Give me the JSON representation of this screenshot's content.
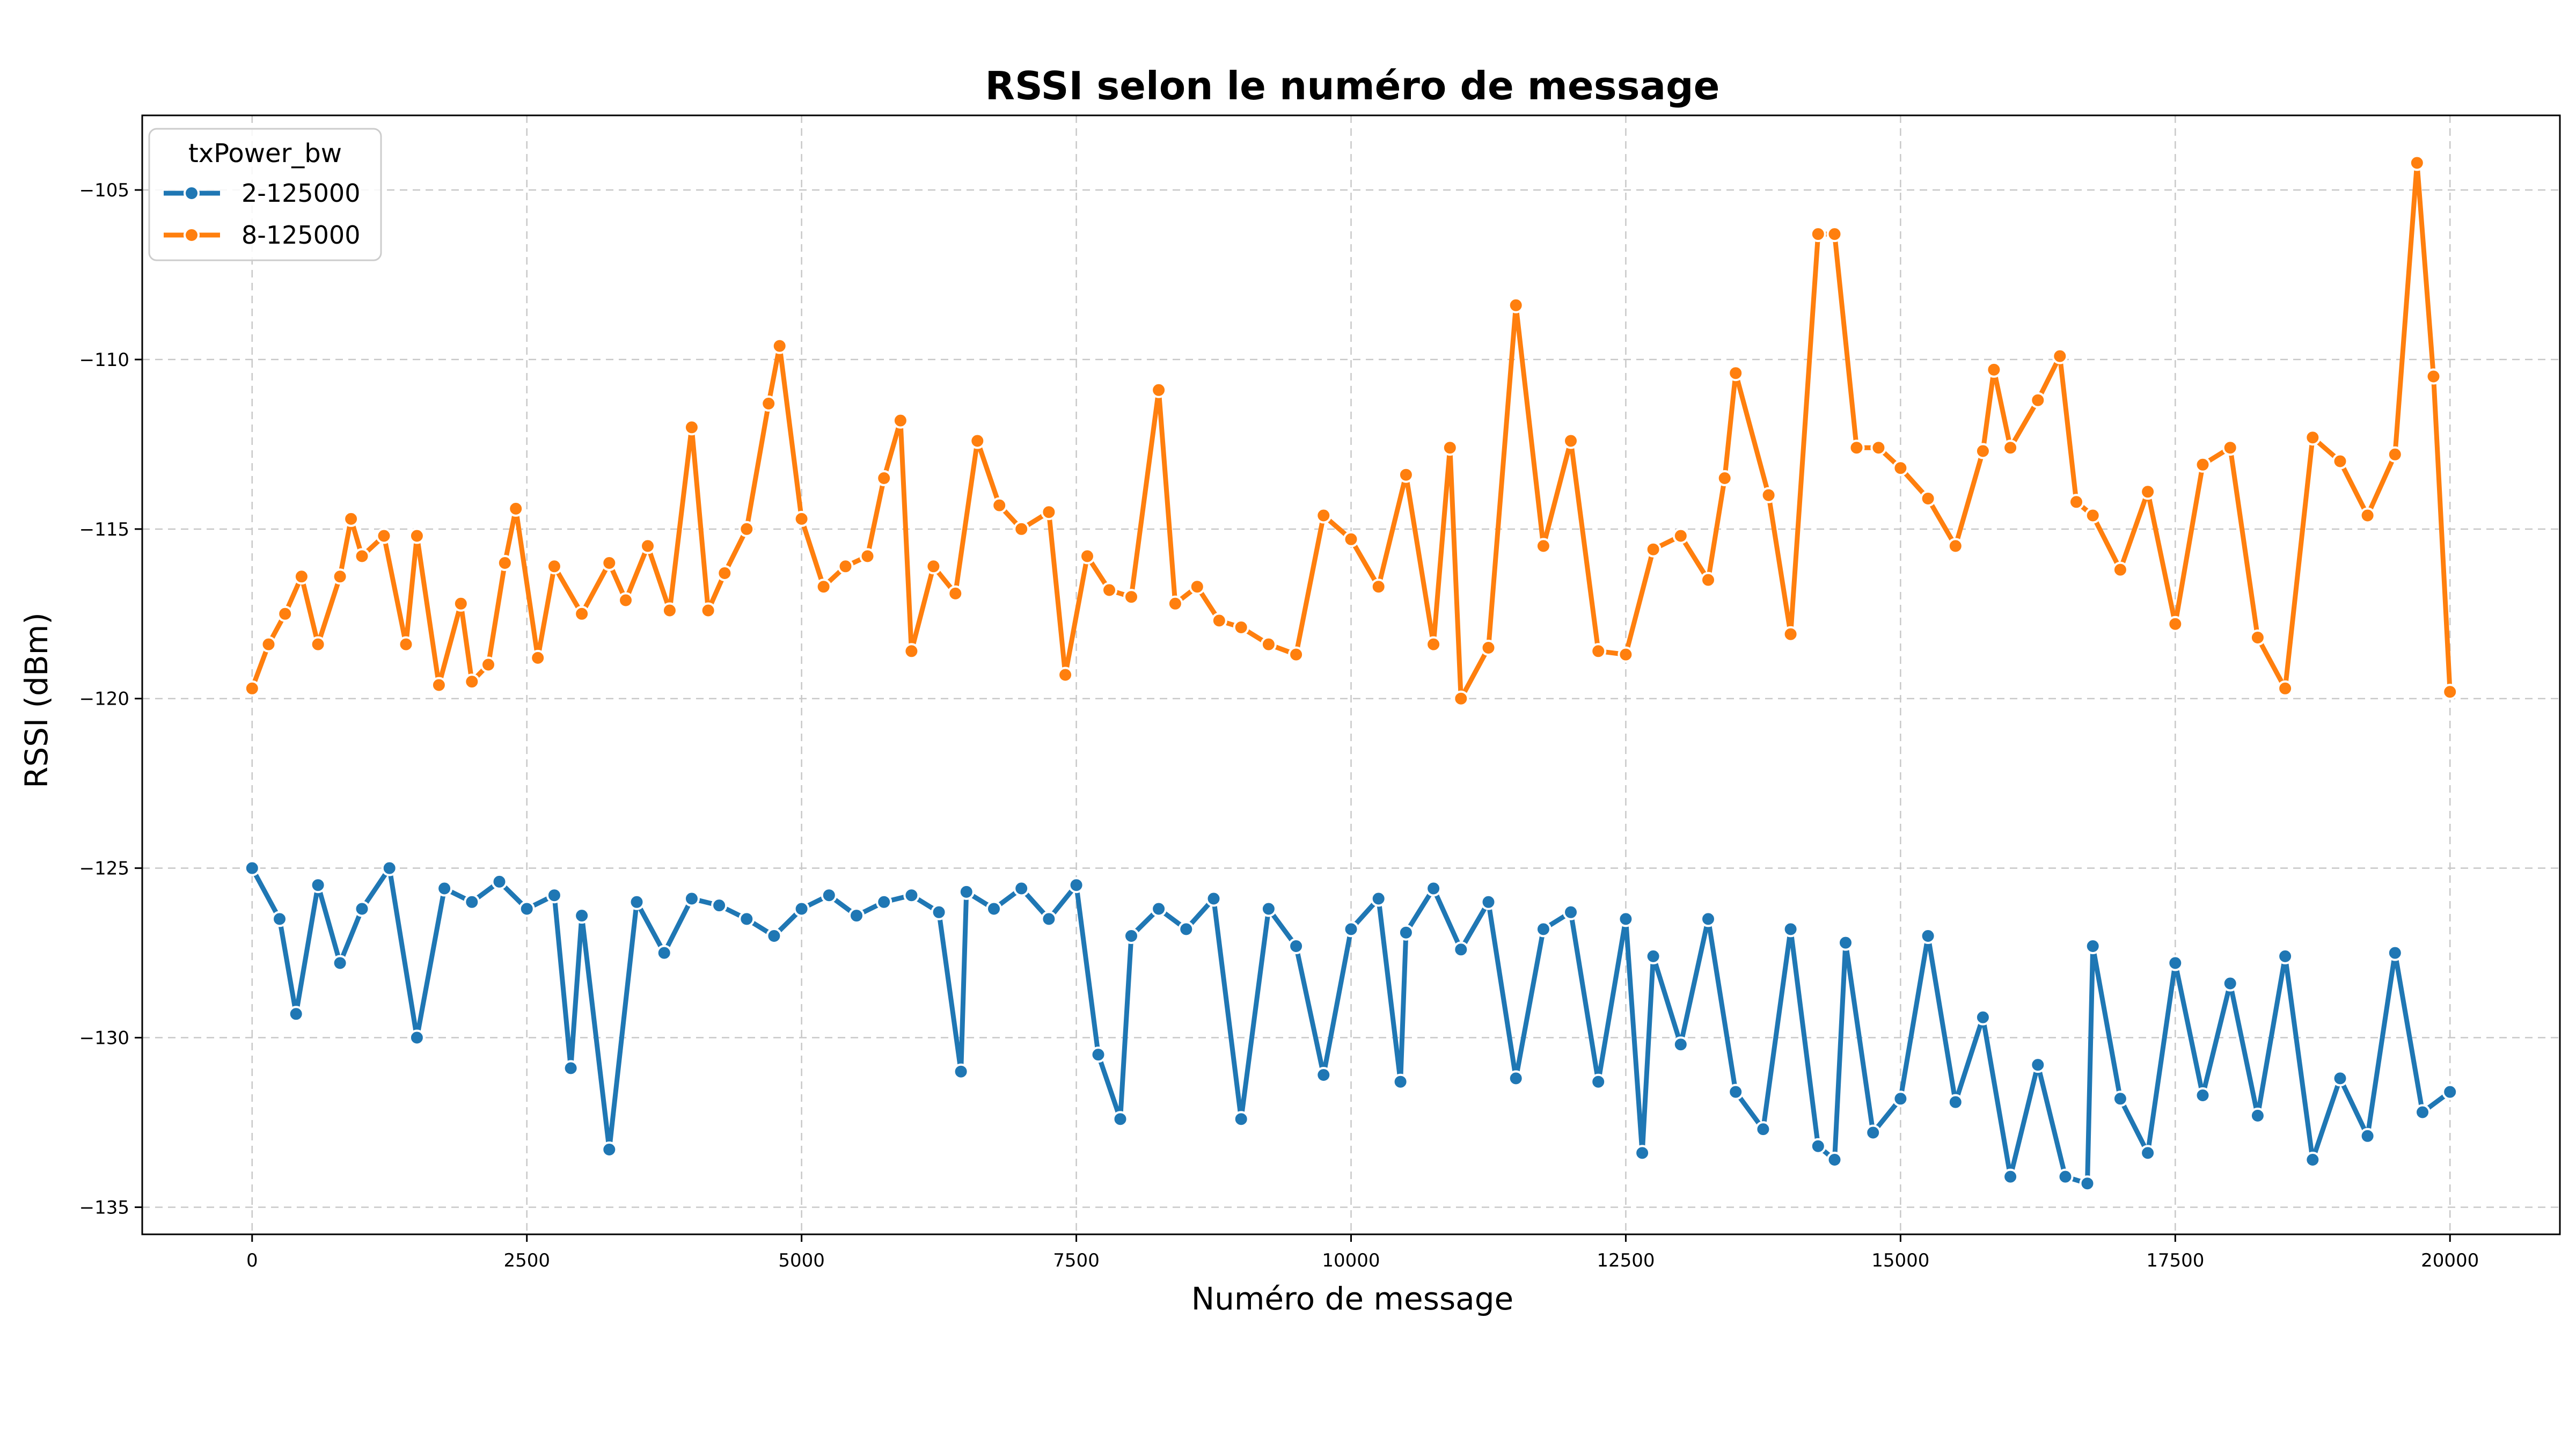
{
  "chart_data": {
    "type": "line",
    "title": "RSSI selon le numéro de message",
    "xlabel": "Numéro de message",
    "ylabel": "RSSI (dBm)",
    "xlim": [
      -1000,
      21000
    ],
    "ylim": [
      -135.8,
      -102.8
    ],
    "x_ticks": [
      0,
      2500,
      5000,
      7500,
      10000,
      12500,
      15000,
      17500,
      20000
    ],
    "x_tick_labels": [
      "0",
      "2500",
      "5000",
      "7500",
      "10000",
      "12500",
      "15000",
      "17500",
      "20000"
    ],
    "y_ticks": [
      -105,
      -110,
      -115,
      -120,
      -125,
      -130,
      -135
    ],
    "y_tick_labels": [
      "−105",
      "−110",
      "−115",
      "−120",
      "−125",
      "−130",
      "−135"
    ],
    "grid": true,
    "legend": {
      "title": "txPower_bw",
      "position": "top-left"
    },
    "series": [
      {
        "name": "2-125000",
        "color": "#1f77b4",
        "points": [
          [
            0,
            -125.0
          ],
          [
            250,
            -126.5
          ],
          [
            400,
            -129.3
          ],
          [
            600,
            -125.5
          ],
          [
            800,
            -127.8
          ],
          [
            1000,
            -126.2
          ],
          [
            1250,
            -125.0
          ],
          [
            1500,
            -130.0
          ],
          [
            1750,
            -125.6
          ],
          [
            2000,
            -126.0
          ],
          [
            2250,
            -125.4
          ],
          [
            2500,
            -126.2
          ],
          [
            2750,
            -125.8
          ],
          [
            2900,
            -130.9
          ],
          [
            3000,
            -126.4
          ],
          [
            3250,
            -133.3
          ],
          [
            3500,
            -126.0
          ],
          [
            3750,
            -127.5
          ],
          [
            4000,
            -125.9
          ],
          [
            4250,
            -126.1
          ],
          [
            4500,
            -126.5
          ],
          [
            4750,
            -127.0
          ],
          [
            5000,
            -126.2
          ],
          [
            5250,
            -125.8
          ],
          [
            5500,
            -126.4
          ],
          [
            5750,
            -126.0
          ],
          [
            6000,
            -125.8
          ],
          [
            6250,
            -126.3
          ],
          [
            6450,
            -131.0
          ],
          [
            6500,
            -125.7
          ],
          [
            6750,
            -126.2
          ],
          [
            7000,
            -125.6
          ],
          [
            7250,
            -126.5
          ],
          [
            7500,
            -125.5
          ],
          [
            7700,
            -130.5
          ],
          [
            7900,
            -132.4
          ],
          [
            8000,
            -127.0
          ],
          [
            8250,
            -126.2
          ],
          [
            8500,
            -126.8
          ],
          [
            8750,
            -125.9
          ],
          [
            9000,
            -132.4
          ],
          [
            9250,
            -126.2
          ],
          [
            9500,
            -127.3
          ],
          [
            9750,
            -131.1
          ],
          [
            10000,
            -126.8
          ],
          [
            10250,
            -125.9
          ],
          [
            10450,
            -131.3
          ],
          [
            10500,
            -126.9
          ],
          [
            10750,
            -125.6
          ],
          [
            11000,
            -127.4
          ],
          [
            11250,
            -126.0
          ],
          [
            11500,
            -131.2
          ],
          [
            11750,
            -126.8
          ],
          [
            12000,
            -126.3
          ],
          [
            12250,
            -131.3
          ],
          [
            12500,
            -126.5
          ],
          [
            12650,
            -133.4
          ],
          [
            12750,
            -127.6
          ],
          [
            13000,
            -130.2
          ],
          [
            13250,
            -126.5
          ],
          [
            13500,
            -131.6
          ],
          [
            13750,
            -132.7
          ],
          [
            14000,
            -126.8
          ],
          [
            14250,
            -133.2
          ],
          [
            14400,
            -133.6
          ],
          [
            14500,
            -127.2
          ],
          [
            14750,
            -132.8
          ],
          [
            15000,
            -131.8
          ],
          [
            15250,
            -127.0
          ],
          [
            15500,
            -131.9
          ],
          [
            15750,
            -129.4
          ],
          [
            16000,
            -134.1
          ],
          [
            16250,
            -130.8
          ],
          [
            16500,
            -134.1
          ],
          [
            16700,
            -134.3
          ],
          [
            16750,
            -127.3
          ],
          [
            17000,
            -131.8
          ],
          [
            17250,
            -133.4
          ],
          [
            17500,
            -127.8
          ],
          [
            17750,
            -131.7
          ],
          [
            18000,
            -128.4
          ],
          [
            18250,
            -132.3
          ],
          [
            18500,
            -127.6
          ],
          [
            18750,
            -133.6
          ],
          [
            19000,
            -131.2
          ],
          [
            19250,
            -132.9
          ],
          [
            19500,
            -127.5
          ],
          [
            19750,
            -132.2
          ],
          [
            20000,
            -131.6
          ]
        ]
      },
      {
        "name": "8-125000",
        "color": "#ff7f0e",
        "points": [
          [
            0,
            -119.7
          ],
          [
            150,
            -118.4
          ],
          [
            300,
            -117.5
          ],
          [
            450,
            -116.4
          ],
          [
            600,
            -118.4
          ],
          [
            800,
            -116.4
          ],
          [
            900,
            -114.7
          ],
          [
            1000,
            -115.8
          ],
          [
            1200,
            -115.2
          ],
          [
            1400,
            -118.4
          ],
          [
            1500,
            -115.2
          ],
          [
            1700,
            -119.6
          ],
          [
            1900,
            -117.2
          ],
          [
            2000,
            -119.5
          ],
          [
            2150,
            -119.0
          ],
          [
            2300,
            -116.0
          ],
          [
            2400,
            -114.4
          ],
          [
            2600,
            -118.8
          ],
          [
            2750,
            -116.1
          ],
          [
            3000,
            -117.5
          ],
          [
            3250,
            -116.0
          ],
          [
            3400,
            -117.1
          ],
          [
            3600,
            -115.5
          ],
          [
            3800,
            -117.4
          ],
          [
            4000,
            -112.0
          ],
          [
            4150,
            -117.4
          ],
          [
            4300,
            -116.3
          ],
          [
            4500,
            -115.0
          ],
          [
            4700,
            -111.3
          ],
          [
            4800,
            -109.6
          ],
          [
            5000,
            -114.7
          ],
          [
            5200,
            -116.7
          ],
          [
            5400,
            -116.1
          ],
          [
            5600,
            -115.8
          ],
          [
            5750,
            -113.5
          ],
          [
            5900,
            -111.8
          ],
          [
            6000,
            -118.6
          ],
          [
            6200,
            -116.1
          ],
          [
            6400,
            -116.9
          ],
          [
            6600,
            -112.4
          ],
          [
            6800,
            -114.3
          ],
          [
            7000,
            -115.0
          ],
          [
            7250,
            -114.5
          ],
          [
            7400,
            -119.3
          ],
          [
            7600,
            -115.8
          ],
          [
            7800,
            -116.8
          ],
          [
            8000,
            -117.0
          ],
          [
            8250,
            -110.9
          ],
          [
            8400,
            -117.2
          ],
          [
            8600,
            -116.7
          ],
          [
            8800,
            -117.7
          ],
          [
            9000,
            -117.9
          ],
          [
            9250,
            -118.4
          ],
          [
            9500,
            -118.7
          ],
          [
            9750,
            -114.6
          ],
          [
            10000,
            -115.3
          ],
          [
            10250,
            -116.7
          ],
          [
            10500,
            -113.4
          ],
          [
            10750,
            -118.4
          ],
          [
            10900,
            -112.6
          ],
          [
            11000,
            -120.0
          ],
          [
            11250,
            -118.5
          ],
          [
            11500,
            -108.4
          ],
          [
            11750,
            -115.5
          ],
          [
            12000,
            -112.4
          ],
          [
            12250,
            -118.6
          ],
          [
            12500,
            -118.7
          ],
          [
            12750,
            -115.6
          ],
          [
            13000,
            -115.2
          ],
          [
            13250,
            -116.5
          ],
          [
            13400,
            -113.5
          ],
          [
            13500,
            -110.4
          ],
          [
            13800,
            -114.0
          ],
          [
            14000,
            -118.1
          ],
          [
            14250,
            -106.3
          ],
          [
            14400,
            -106.3
          ],
          [
            14600,
            -112.6
          ],
          [
            14800,
            -112.6
          ],
          [
            15000,
            -113.2
          ],
          [
            15250,
            -114.1
          ],
          [
            15500,
            -115.5
          ],
          [
            15750,
            -112.7
          ],
          [
            15850,
            -110.3
          ],
          [
            16000,
            -112.6
          ],
          [
            16250,
            -111.2
          ],
          [
            16450,
            -109.9
          ],
          [
            16600,
            -114.2
          ],
          [
            16750,
            -114.6
          ],
          [
            17000,
            -116.2
          ],
          [
            17250,
            -113.9
          ],
          [
            17500,
            -117.8
          ],
          [
            17750,
            -113.1
          ],
          [
            18000,
            -112.6
          ],
          [
            18250,
            -118.2
          ],
          [
            18500,
            -119.7
          ],
          [
            18750,
            -112.3
          ],
          [
            19000,
            -113.0
          ],
          [
            19250,
            -114.6
          ],
          [
            19500,
            -112.8
          ],
          [
            19700,
            -104.2
          ],
          [
            19850,
            -110.5
          ],
          [
            20000,
            -119.8
          ]
        ]
      }
    ]
  }
}
